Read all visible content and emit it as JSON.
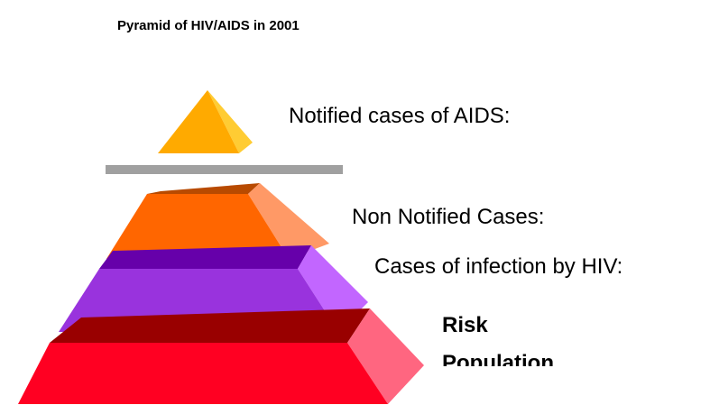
{
  "title": "Pyramid of HIV/AIDS in 2001",
  "levels": [
    {
      "label": "Notified cases of AIDS:"
    },
    {
      "label": "Non Notified Cases:"
    },
    {
      "label": "Cases of infection by HIV:"
    },
    {
      "label_lines": [
        "Risk",
        "Population"
      ]
    }
  ]
}
